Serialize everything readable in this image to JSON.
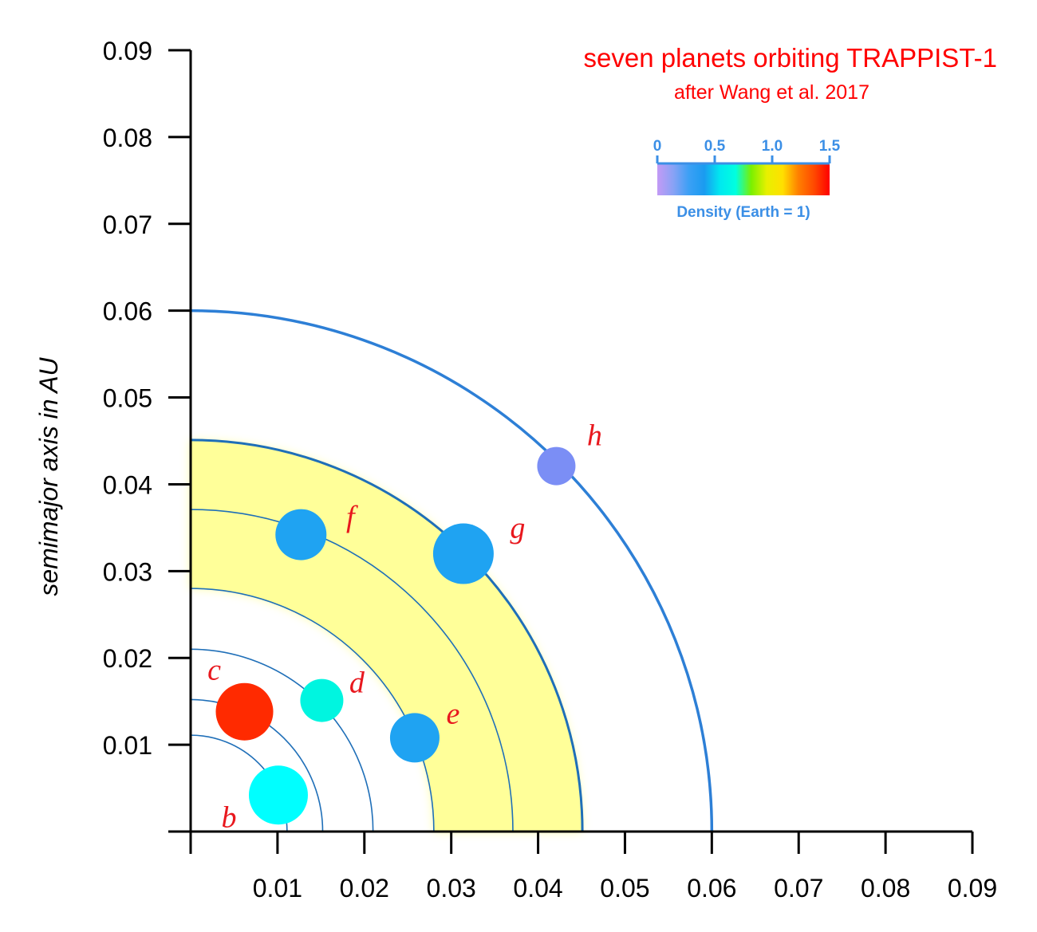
{
  "chart_data": {
    "type": "scatter",
    "title": "seven planets orbiting TRAPPIST-1",
    "subtitle": "after Wang et al. 2017",
    "xlabel": "",
    "ylabel": "semimajor axis in AU",
    "xlim": [
      0,
      0.09
    ],
    "ylim": [
      0,
      0.09
    ],
    "x_ticks": [
      "0.01",
      "0.02",
      "0.03",
      "0.04",
      "0.05",
      "0.06",
      "0.07",
      "0.08",
      "0.09"
    ],
    "y_ticks": [
      "0.01",
      "0.02",
      "0.03",
      "0.04",
      "0.05",
      "0.06",
      "0.07",
      "0.08",
      "0.09"
    ],
    "habitable_zone": [
      0.028,
      0.045
    ],
    "orbits": [
      0.0111,
      0.0152,
      0.021,
      0.028,
      0.0371,
      0.0451,
      0.06
    ],
    "planets": [
      {
        "name": "b",
        "x": 0.0101,
        "y": 0.0042,
        "semimajor_axis": 0.0111,
        "density": 0.6,
        "color": "#00ffff"
      },
      {
        "name": "c",
        "x": 0.0062,
        "y": 0.0138,
        "semimajor_axis": 0.0152,
        "density": 1.5,
        "color": "#ff2a00"
      },
      {
        "name": "d",
        "x": 0.0151,
        "y": 0.0151,
        "semimajor_axis": 0.021,
        "density": 0.6,
        "color": "#00f5e0"
      },
      {
        "name": "e",
        "x": 0.0258,
        "y": 0.0108,
        "semimajor_axis": 0.028,
        "density": 0.45,
        "color": "#1fa3f2"
      },
      {
        "name": "f",
        "x": 0.0127,
        "y": 0.0342,
        "semimajor_axis": 0.0371,
        "density": 0.45,
        "color": "#1fa3f2"
      },
      {
        "name": "g",
        "x": 0.0314,
        "y": 0.032,
        "semimajor_axis": 0.0451,
        "density": 0.45,
        "color": "#1fa3f2"
      },
      {
        "name": "h",
        "x": 0.0421,
        "y": 0.0421,
        "semimajor_axis": 0.06,
        "density": 0.2,
        "color": "#7b8ef5"
      }
    ],
    "legend": {
      "title": "Density (Earth = 1)",
      "ticks": [
        "0",
        "0.5",
        "1.0",
        "1.5"
      ],
      "tick_values": [
        0,
        0.5,
        1.0,
        1.5
      ],
      "placement": "top-right",
      "colors": [
        "#c39af5",
        "#8aa2f5",
        "#3ca0f5",
        "#1a9bf0",
        "#00e8f0",
        "#00ffe0",
        "#7af000",
        "#e8f000",
        "#ffe000",
        "#ff8000",
        "#ff4a00",
        "#ff0000"
      ]
    },
    "colors": {
      "title": "#ff0000",
      "planet_labels": "#e8181e",
      "orbit": "#1f6fb8",
      "outer_orbit": "#2d7fd6",
      "habitable_zone": "#ffff99",
      "legend_text": "#3b8fe6"
    },
    "grid": false
  }
}
